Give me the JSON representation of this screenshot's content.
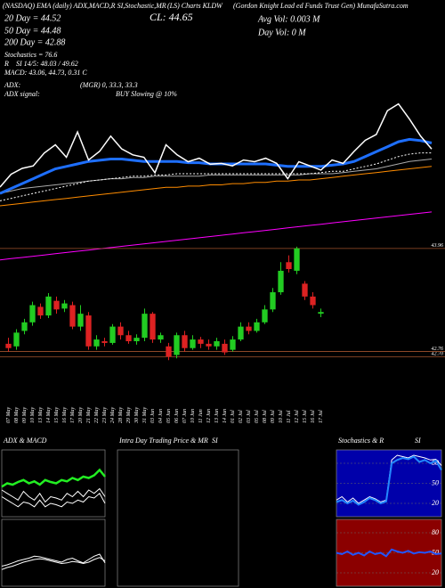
{
  "header": [
    "(NASDAQ) EMA (daily) ADX,MACD,R SI,Stochastic,MR",
    "(LS) Charts KLDW",
    "(Gordon Knight Lead ed Funds Trust Gen) MunafaSutra.com",
    "CL: 44.65",
    "20 Day = 44.52",
    "Avg Vol: 0.003 M",
    "50 Day = 44.48",
    "Day Vol: 0  M",
    "200 Day = 42.88",
    "Stochastics = 76.6",
    "R",
    "SI 14/5: 48.03 / 49.62",
    "MACD: 43.06, 44.73, 0.31 C",
    "ADX:",
    "(MGR) 0, 33.3, 33.3",
    "ADX signal:",
    "BUY Slowing @ 10%"
  ],
  "chart_data": [
    {
      "type": "line",
      "ylim": [
        -5,
        100
      ],
      "series": [
        {
          "color": "#ff00ff",
          "values": [
            -2,
            -1.5,
            -1,
            -0.5,
            0,
            0.5,
            1,
            1.5,
            2,
            2.5,
            3,
            3.5,
            4,
            4.5,
            5,
            5.5,
            6,
            6.5,
            7,
            7.5,
            8,
            8.5,
            9,
            9.5,
            10,
            10.5,
            11,
            11.5,
            12,
            12.5,
            13,
            13.5,
            14,
            14.5,
            15,
            15.5,
            16,
            16.5,
            17,
            17.5
          ]
        },
        {
          "color": "#ff8c00",
          "values": [
            20,
            20.5,
            21,
            21.5,
            22,
            22.5,
            23,
            23.5,
            24,
            24.5,
            25,
            25.5,
            26,
            26.5,
            27,
            27.5,
            27.5,
            28,
            28,
            28.5,
            28.5,
            29,
            29,
            29.5,
            29.5,
            30,
            30,
            30.5,
            30.5,
            31,
            31.5,
            32,
            32.5,
            33,
            33.5,
            34,
            34.5,
            35,
            35.5,
            36
          ]
        },
        {
          "color": "#aaaaaa",
          "values": [
            25,
            26,
            27,
            27.5,
            28,
            28.5,
            29,
            29.5,
            30,
            30.5,
            31,
            31,
            31.5,
            31.5,
            32,
            32,
            32,
            32,
            32,
            32.5,
            32.5,
            32.5,
            32.5,
            32.5,
            32.5,
            32.5,
            32.5,
            32.5,
            33,
            33,
            33,
            33.5,
            34,
            34.5,
            35,
            36,
            37,
            38,
            38.5,
            39
          ]
        },
        {
          "color": "#ffffff",
          "dash": true,
          "values": [
            22,
            23,
            24,
            25,
            26,
            27,
            28,
            29,
            30,
            30.5,
            31,
            31.5,
            32,
            32,
            32.5,
            32.5,
            33,
            33,
            33,
            33,
            33,
            33,
            33,
            33,
            33,
            33,
            33,
            33,
            33,
            33.5,
            34,
            34,
            35,
            36,
            37,
            38.5,
            40,
            41,
            41.5,
            41.5
          ]
        },
        {
          "color": "#1e6fff",
          "width": 3,
          "values": [
            25,
            27,
            29,
            31,
            33,
            35,
            36,
            37,
            38,
            38.5,
            39,
            39,
            38.5,
            38,
            38,
            38,
            38,
            37.5,
            37.5,
            37,
            37,
            37,
            37,
            37,
            37,
            36.5,
            36,
            36,
            36,
            36,
            36.5,
            37,
            38,
            40,
            42,
            44,
            46,
            47,
            46.5,
            45.5
          ]
        },
        {
          "color": "#ffffff",
          "width": 1.5,
          "values": [
            27.6,
            32.8,
            35.2,
            36.2,
            41.4,
            44.8,
            39.7,
            50,
            38.6,
            42.1,
            48.3,
            43.1,
            40.7,
            39.7,
            33.4,
            44.8,
            40.7,
            37.9,
            39.3,
            36.9,
            37.2,
            36.2,
            38.6,
            37.9,
            39.3,
            37.2,
            31,
            37.9,
            36.2,
            34.5,
            38.6,
            37.2,
            42.1,
            46.6,
            49,
            58.6,
            61.4,
            55.2,
            48.3,
            43.1
          ]
        }
      ]
    },
    {
      "type": "candlestick",
      "ylim": [
        42.6,
        44.0
      ],
      "grid": true,
      "yticks": [
        {
          "value": 42.7,
          "label": "42.70"
        },
        42.76,
        43.96
      ],
      "categories": [
        "07 May",
        "08 May",
        "09 May",
        "10 May",
        "13 May",
        "14 May",
        "15 May",
        "16 May",
        "17 May",
        "20 May",
        "21 May",
        "22 May",
        "23 May",
        "24 May",
        "28 May",
        "29 May",
        "30 May",
        "31 May",
        "03 Jun",
        "04 Jun",
        "05 Jun",
        "06 Jun",
        "07 Jun",
        "10 Jun",
        "11 Jun",
        "12 Jun",
        "13 Jun",
        "14 Jun",
        "01 Jul",
        "02 Jul",
        "03 Jul",
        "05 Jul",
        "08 Jul",
        "09 Jul",
        "10 Jul",
        "11 Jul",
        "12 Jul",
        "15 Jul",
        "16 Jul",
        "17 Jul"
      ],
      "up_color": "#22cc22",
      "down_color": "#dd2222",
      "open": [
        42.85,
        42.82,
        43.0,
        43.1,
        43.28,
        43.18,
        43.35,
        43.26,
        43.3,
        43.05,
        43.18,
        42.82,
        42.88,
        42.86,
        43.05,
        42.95,
        42.88,
        42.92,
        43.2,
        42.9,
        42.82,
        42.72,
        42.95,
        42.8,
        42.9,
        42.85,
        42.82,
        42.85,
        42.78,
        42.9,
        43.05,
        43.0,
        43.1,
        43.25,
        43.45,
        43.8,
        43.7,
        43.55,
        43.4,
        43.2
      ],
      "high": [
        42.92,
        43.02,
        43.14,
        43.34,
        43.32,
        43.44,
        43.4,
        43.36,
        43.34,
        43.3,
        43.22,
        42.95,
        42.92,
        43.08,
        43.1,
        43.0,
        42.96,
        43.26,
        43.22,
        42.98,
        42.86,
        42.98,
        43.0,
        42.95,
        42.93,
        42.9,
        42.92,
        42.9,
        42.94,
        43.1,
        43.1,
        43.14,
        43.3,
        43.5,
        43.8,
        43.88,
        43.98,
        43.58,
        43.45,
        43.26
      ],
      "low": [
        42.76,
        42.78,
        42.96,
        43.06,
        43.14,
        43.15,
        43.2,
        43.22,
        43.02,
        43.0,
        42.78,
        42.78,
        42.82,
        42.84,
        42.9,
        42.85,
        42.84,
        42.88,
        42.86,
        42.86,
        42.66,
        42.68,
        42.76,
        42.78,
        42.8,
        42.78,
        42.78,
        42.72,
        42.76,
        42.88,
        42.96,
        42.98,
        43.08,
        43.22,
        43.42,
        43.68,
        43.66,
        43.36,
        43.26,
        43.16
      ],
      "close": [
        42.8,
        42.98,
        43.1,
        43.3,
        43.18,
        43.4,
        43.25,
        43.32,
        43.05,
        43.2,
        42.82,
        42.9,
        42.86,
        43.05,
        42.95,
        42.88,
        42.92,
        43.2,
        42.9,
        42.95,
        42.7,
        42.95,
        42.8,
        42.9,
        42.85,
        42.82,
        42.88,
        42.75,
        42.9,
        43.05,
        43.0,
        43.1,
        43.25,
        43.45,
        43.7,
        43.72,
        43.96,
        43.4,
        43.3,
        43.22
      ]
    },
    {
      "type": "line",
      "title": "ADX  & MACD",
      "ylim": [
        0,
        100
      ],
      "series": [
        {
          "color": "#ffffff",
          "values": [
            30,
            25,
            20,
            15,
            22,
            20,
            15,
            25,
            15,
            20,
            18,
            15,
            22,
            20,
            25,
            22,
            30,
            28,
            35,
            20
          ]
        },
        {
          "color": "#ffffff",
          "values": [
            40,
            35,
            30,
            25,
            38,
            30,
            25,
            35,
            22,
            30,
            28,
            25,
            35,
            30,
            38,
            30,
            40,
            35,
            42,
            30
          ]
        },
        {
          "color": "#22ee22",
          "width": 2.5,
          "values": [
            45,
            50,
            48,
            52,
            55,
            50,
            53,
            48,
            55,
            52,
            50,
            55,
            53,
            58,
            55,
            60,
            58,
            62,
            70,
            60
          ]
        }
      ]
    },
    {
      "type": "line",
      "ylim": [
        0,
        100
      ],
      "series": [
        {
          "color": "#ffffff",
          "values": [
            30,
            32,
            35,
            38,
            40,
            42,
            45,
            44,
            42,
            40,
            38,
            36,
            40,
            42,
            38,
            35,
            40,
            45,
            48,
            35
          ]
        },
        {
          "color": "#ffffff",
          "values": [
            25,
            28,
            30,
            33,
            36,
            38,
            40,
            41,
            40,
            38,
            36,
            34,
            35,
            37,
            36,
            34,
            36,
            40,
            43,
            38
          ]
        }
      ]
    },
    {
      "type": "empty",
      "title": "Intra Day Trading Price  & MR",
      "subtitle": "SI"
    },
    {
      "type": "line",
      "title": "Stochastics & R",
      "subtitle": "SI",
      "ylim": [
        0,
        100
      ],
      "yticks": [
        20,
        50,
        80
      ],
      "background": "#0000aa",
      "series": [
        {
          "color": "#ffffff",
          "values": [
            25,
            30,
            22,
            28,
            20,
            25,
            30,
            27,
            22,
            25,
            85,
            92,
            90,
            88,
            92,
            90,
            88,
            85,
            86,
            76.6
          ]
        },
        {
          "color": "#2288ff",
          "width": 2,
          "values": [
            22,
            25,
            20,
            24,
            18,
            22,
            28,
            25,
            20,
            23,
            80,
            85,
            88,
            86,
            90,
            82,
            85,
            80,
            84,
            70
          ]
        }
      ]
    },
    {
      "type": "line",
      "ylim": [
        0,
        100
      ],
      "yticks": [
        20,
        50,
        80
      ],
      "background": "#8b0000",
      "series": [
        {
          "color": "#2255ff",
          "width": 2,
          "values": [
            50,
            48,
            52,
            47,
            50,
            46,
            52,
            48,
            50,
            45,
            55,
            52,
            50,
            53,
            49,
            51,
            50,
            52,
            48,
            49
          ]
        }
      ]
    }
  ]
}
